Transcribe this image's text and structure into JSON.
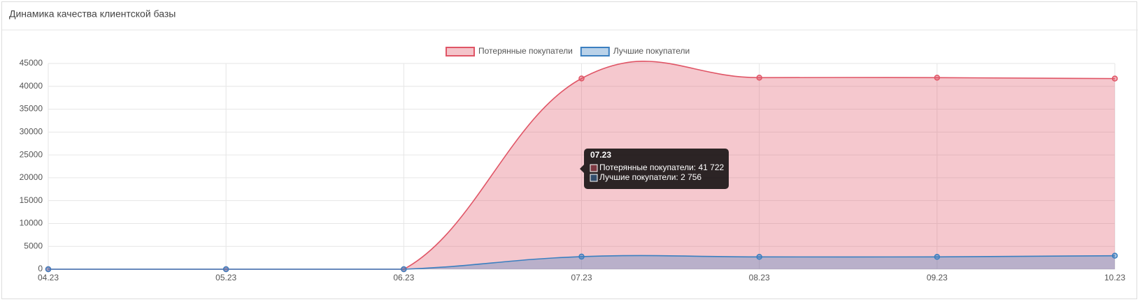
{
  "header": {
    "title": "Динамика качества клиентской базы"
  },
  "chart_data": {
    "type": "area",
    "categories": [
      "04.23",
      "05.23",
      "06.23",
      "07.23",
      "08.23",
      "09.23",
      "10.23"
    ],
    "series": [
      {
        "name": "Потерянные покупатели",
        "color": "#e05566",
        "values": [
          0,
          0,
          0,
          41722,
          41900,
          41900,
          41700
        ]
      },
      {
        "name": "Лучшие покупатели",
        "color": "#3a7fc0",
        "values": [
          0,
          0,
          0,
          2756,
          2700,
          2700,
          2950
        ]
      }
    ],
    "ylim": [
      0,
      45000
    ],
    "yticks": [
      0,
      5000,
      10000,
      15000,
      20000,
      25000,
      30000,
      35000,
      40000,
      45000
    ],
    "grid": true,
    "legend": "top",
    "tooltip": {
      "lines": [
        "Потерянные покупатели: 41 722",
        "Лучшие покупатели: 2 756"
      ]
    }
  }
}
